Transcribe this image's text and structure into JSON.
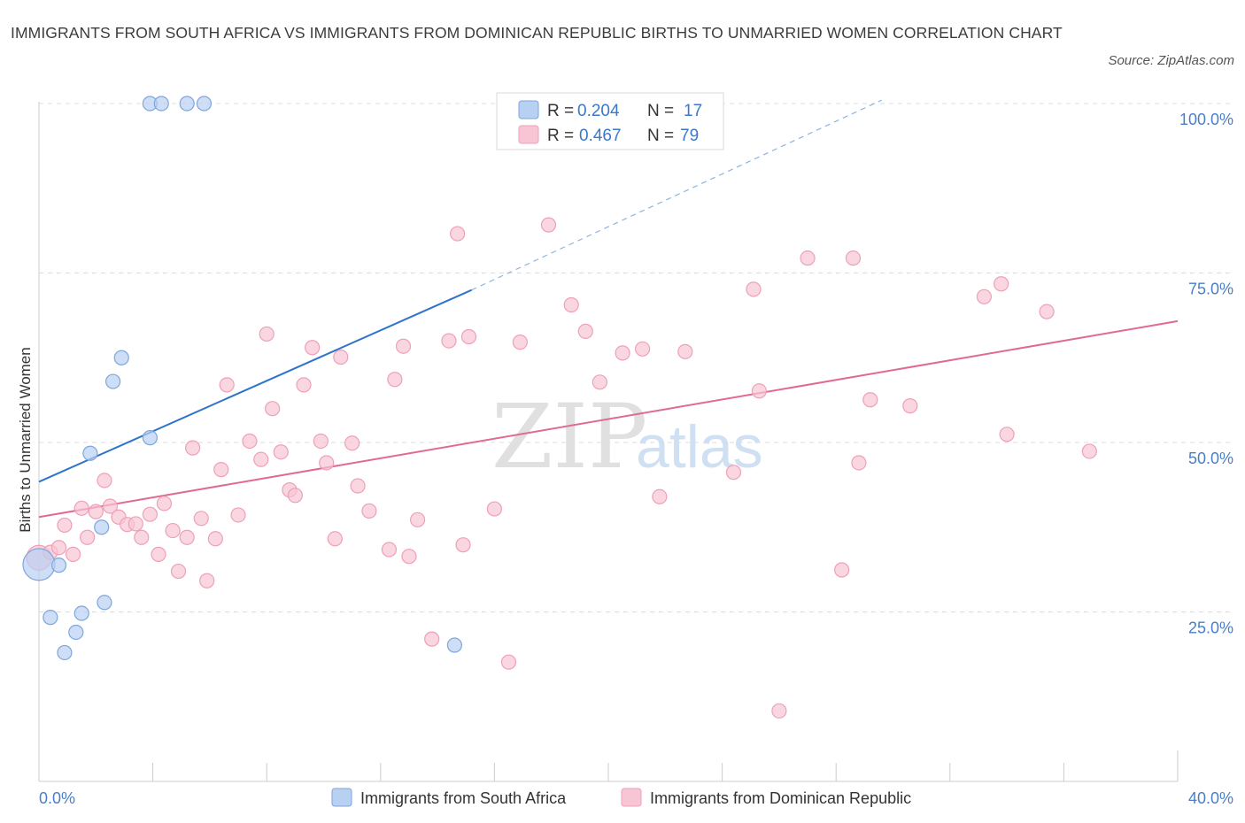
{
  "title": "IMMIGRANTS FROM SOUTH AFRICA VS IMMIGRANTS FROM DOMINICAN REPUBLIC BIRTHS TO UNMARRIED WOMEN CORRELATION CHART",
  "source": "Source: ZipAtlas.com",
  "colors": {
    "blue_fill": "#b8d0f2",
    "blue_stroke": "#7ea6dc",
    "blue_line": "#2f74c9",
    "pink_fill": "#f8c5d4",
    "pink_stroke": "#eea0b8",
    "pink_line": "#e06a93",
    "grid": "#dcdcdc",
    "tick_text": "#4a7fc8"
  },
  "chart_data": {
    "type": "scatter",
    "title": "IMMIGRANTS FROM SOUTH AFRICA VS IMMIGRANTS FROM DOMINICAN REPUBLIC BIRTHS TO UNMARRIED WOMEN CORRELATION CHART",
    "xlabel": "",
    "ylabel": "Births to Unmarried Women",
    "xlim": [
      0,
      40
    ],
    "ylim": [
      0,
      100
    ],
    "x_tick_labels": [
      "0.0%",
      "40.0%"
    ],
    "y_ticks": [
      25,
      50,
      75,
      100
    ],
    "y_tick_labels": [
      "25.0%",
      "50.0%",
      "75.0%",
      "100.0%"
    ],
    "grid": true,
    "watermark": {
      "zip": "ZIP",
      "atlas": "atlas"
    },
    "legend": {
      "position": "top-center",
      "entries": [
        {
          "r_label": "R =",
          "r_value": "0.204",
          "n_label": "N =",
          "n_value": "17"
        },
        {
          "r_label": "R =",
          "r_value": "0.467",
          "n_label": "N =",
          "n_value": "79"
        }
      ]
    },
    "series": [
      {
        "name": "Immigrants from South Africa",
        "color": "#b8d0f2",
        "trend": {
          "x0": 0,
          "y0": 44.2,
          "x1": 15.2,
          "y1": 72.5,
          "dash_to_x": 29.6,
          "dash_to_y": 100.5
        },
        "points": [
          [
            0.0,
            32.0,
            18
          ],
          [
            0.7,
            31.9,
            8
          ],
          [
            0.4,
            24.2,
            8
          ],
          [
            0.9,
            19.0,
            8
          ],
          [
            1.3,
            22.0,
            8
          ],
          [
            1.5,
            24.8,
            8
          ],
          [
            1.8,
            48.4,
            8
          ],
          [
            2.2,
            37.5,
            8
          ],
          [
            2.3,
            26.4,
            8
          ],
          [
            2.6,
            59.0,
            8
          ],
          [
            2.9,
            62.5,
            8
          ],
          [
            3.9,
            50.7,
            8
          ],
          [
            3.9,
            100.0,
            8
          ],
          [
            4.3,
            100.0,
            8
          ],
          [
            5.2,
            100.0,
            8
          ],
          [
            5.8,
            100.0,
            8
          ],
          [
            14.6,
            20.1,
            8
          ]
        ]
      },
      {
        "name": "Immigrants from Dominican Republic",
        "color": "#f8c5d4",
        "trend": {
          "x0": 0,
          "y0": 39.0,
          "x1": 40,
          "y1": 67.9
        },
        "points": [
          [
            0.0,
            33.0,
            14
          ],
          [
            0.4,
            33.8,
            8
          ],
          [
            0.7,
            34.5,
            8
          ],
          [
            0.9,
            37.8,
            8
          ],
          [
            1.2,
            33.5,
            8
          ],
          [
            1.5,
            40.3,
            8
          ],
          [
            1.7,
            36.0,
            8
          ],
          [
            2.0,
            39.8,
            8
          ],
          [
            2.3,
            44.4,
            8
          ],
          [
            2.5,
            40.6,
            8
          ],
          [
            2.8,
            39.0,
            8
          ],
          [
            3.1,
            37.9,
            8
          ],
          [
            3.4,
            38.0,
            8
          ],
          [
            3.6,
            36.0,
            8
          ],
          [
            3.9,
            39.4,
            8
          ],
          [
            4.2,
            33.5,
            8
          ],
          [
            4.4,
            41.0,
            8
          ],
          [
            4.7,
            37.0,
            8
          ],
          [
            4.9,
            31.0,
            8
          ],
          [
            5.2,
            36.0,
            8
          ],
          [
            5.4,
            49.2,
            8
          ],
          [
            5.7,
            38.8,
            8
          ],
          [
            5.9,
            29.6,
            8
          ],
          [
            6.2,
            35.8,
            8
          ],
          [
            6.4,
            46.0,
            8
          ],
          [
            6.6,
            58.5,
            8
          ],
          [
            7.0,
            39.3,
            8
          ],
          [
            7.4,
            50.2,
            8
          ],
          [
            7.8,
            47.5,
            8
          ],
          [
            8.0,
            66.0,
            8
          ],
          [
            8.2,
            55.0,
            8
          ],
          [
            8.5,
            48.6,
            8
          ],
          [
            8.8,
            43.0,
            8
          ],
          [
            9.0,
            42.2,
            8
          ],
          [
            9.3,
            58.5,
            8
          ],
          [
            9.6,
            64.0,
            8
          ],
          [
            9.9,
            50.2,
            8
          ],
          [
            10.1,
            47.0,
            8
          ],
          [
            10.4,
            35.8,
            8
          ],
          [
            10.6,
            62.6,
            8
          ],
          [
            11.0,
            49.9,
            8
          ],
          [
            11.2,
            43.6,
            8
          ],
          [
            11.6,
            39.9,
            8
          ],
          [
            12.3,
            34.2,
            8
          ],
          [
            12.5,
            59.3,
            8
          ],
          [
            12.8,
            64.2,
            8
          ],
          [
            13.0,
            33.2,
            8
          ],
          [
            13.3,
            38.6,
            8
          ],
          [
            13.8,
            21.0,
            8
          ],
          [
            14.4,
            65.0,
            8
          ],
          [
            14.7,
            80.8,
            8
          ],
          [
            14.9,
            34.9,
            8
          ],
          [
            15.1,
            65.6,
            8
          ],
          [
            16.0,
            40.2,
            8
          ],
          [
            16.5,
            17.6,
            8
          ],
          [
            16.9,
            64.8,
            8
          ],
          [
            17.9,
            82.1,
            8
          ],
          [
            18.7,
            70.3,
            8
          ],
          [
            19.2,
            66.4,
            8
          ],
          [
            19.7,
            58.9,
            8
          ],
          [
            20.5,
            63.2,
            8
          ],
          [
            21.2,
            63.8,
            8
          ],
          [
            21.8,
            42.0,
            8
          ],
          [
            22.7,
            63.4,
            8
          ],
          [
            24.4,
            45.6,
            8
          ],
          [
            25.1,
            72.6,
            8
          ],
          [
            25.3,
            57.6,
            8
          ],
          [
            26.0,
            10.4,
            8
          ],
          [
            27.0,
            77.2,
            8
          ],
          [
            28.2,
            31.2,
            8
          ],
          [
            28.6,
            77.2,
            8
          ],
          [
            28.8,
            47.0,
            8
          ],
          [
            29.2,
            56.3,
            8
          ],
          [
            30.6,
            55.4,
            8
          ],
          [
            33.2,
            71.5,
            8
          ],
          [
            33.8,
            73.4,
            8
          ],
          [
            34.0,
            51.2,
            8
          ],
          [
            35.4,
            69.3,
            8
          ],
          [
            36.9,
            48.7,
            8
          ]
        ]
      }
    ]
  },
  "bottom_legend": [
    {
      "label": "Immigrants from South Africa"
    },
    {
      "label": "Immigrants from Dominican Republic"
    }
  ]
}
